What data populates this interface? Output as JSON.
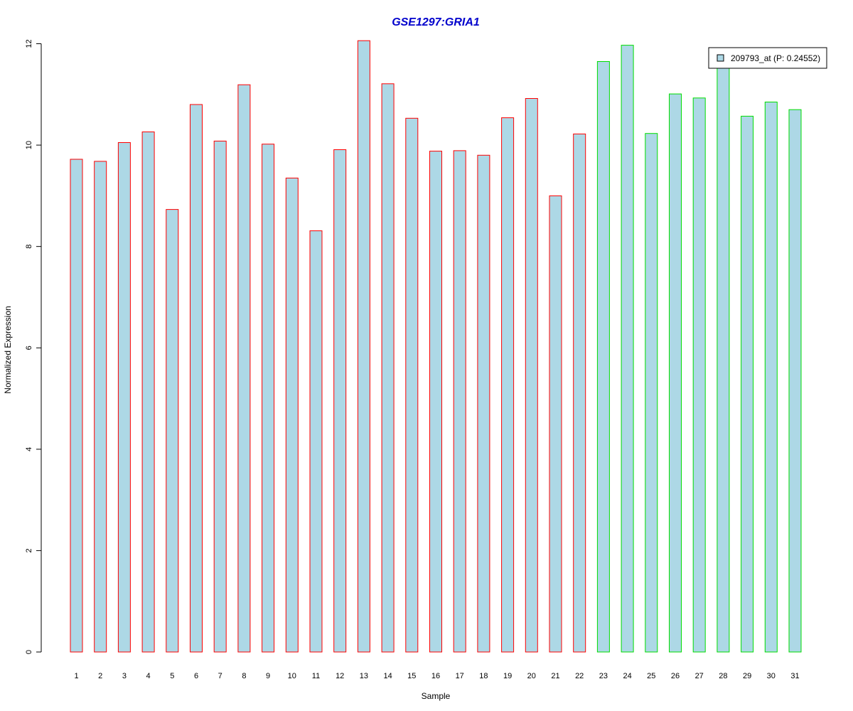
{
  "chart_data": {
    "type": "bar",
    "title": "GSE1297:GRIA1",
    "xlabel": "Sample",
    "ylabel": "Normalized Expression",
    "ylim": [
      0,
      12
    ],
    "yticks": [
      0,
      2,
      4,
      6,
      8,
      10,
      12
    ],
    "grid": false,
    "legend_position": "top-right",
    "categories": [
      "1",
      "2",
      "3",
      "4",
      "5",
      "6",
      "7",
      "8",
      "9",
      "10",
      "11",
      "12",
      "13",
      "14",
      "15",
      "16",
      "17",
      "18",
      "19",
      "20",
      "21",
      "22",
      "23",
      "24",
      "25",
      "26",
      "27",
      "28",
      "29",
      "30",
      "31"
    ],
    "series": [
      {
        "name": "209793_at (P: 0.24552)",
        "values": [
          9.72,
          9.68,
          10.05,
          10.26,
          8.73,
          10.8,
          10.08,
          11.19,
          10.02,
          9.35,
          8.31,
          9.91,
          12.06,
          11.21,
          10.53,
          9.88,
          9.89,
          9.8,
          10.54,
          10.92,
          9.0,
          10.22,
          11.65,
          11.97,
          10.23,
          11.01,
          10.93,
          11.6,
          10.57,
          10.85,
          10.7
        ],
        "fill_color": "#add8e6"
      }
    ],
    "groups": [
      {
        "range": [
          1,
          22
        ],
        "border_color": "#ff0000"
      },
      {
        "range": [
          23,
          31
        ],
        "border_color": "#00dd00"
      }
    ],
    "title_color": "#0000cc"
  }
}
